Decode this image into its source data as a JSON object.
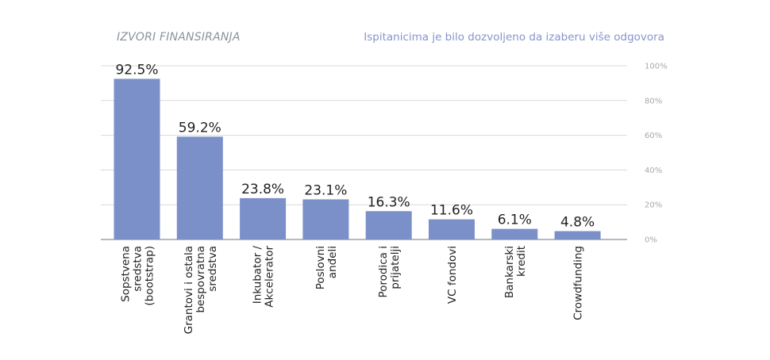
{
  "chart_data": {
    "type": "bar",
    "title": "IZVORI FINANSIRANJA",
    "subtitle": "Ispitanicima je bilo dozvoljeno da izaberu više odgovora",
    "xlabel": "",
    "ylabel": "",
    "ylim": [
      0,
      100
    ],
    "yticks": [
      0,
      20,
      40,
      60,
      80,
      100
    ],
    "ytick_labels": [
      "0%",
      "20%",
      "40%",
      "60%",
      "80%",
      "100%"
    ],
    "grid": true,
    "y_axis_position": "right",
    "bar_color": "#7b8fc9",
    "categories": [
      [
        "Sopstvena",
        "sredstva",
        "(bootstrap)"
      ],
      [
        "Grantovi i ostala",
        "bespovratna",
        "sredstva"
      ],
      [
        "Inkubator /",
        "Akcelerator"
      ],
      [
        "Poslovni",
        "anđeli"
      ],
      [
        "Porodica i",
        "prijatelji"
      ],
      [
        "VC fondovi"
      ],
      [
        "Bankarski",
        "kredit"
      ],
      [
        "Crowdfunding"
      ]
    ],
    "values": [
      92.5,
      59.2,
      23.8,
      23.1,
      16.3,
      11.6,
      6.1,
      4.8
    ],
    "value_labels": [
      "92.5%",
      "59.2%",
      "23.8%",
      "23.1%",
      "16.3%",
      "11.6%",
      "6.1%",
      "4.8%"
    ]
  }
}
